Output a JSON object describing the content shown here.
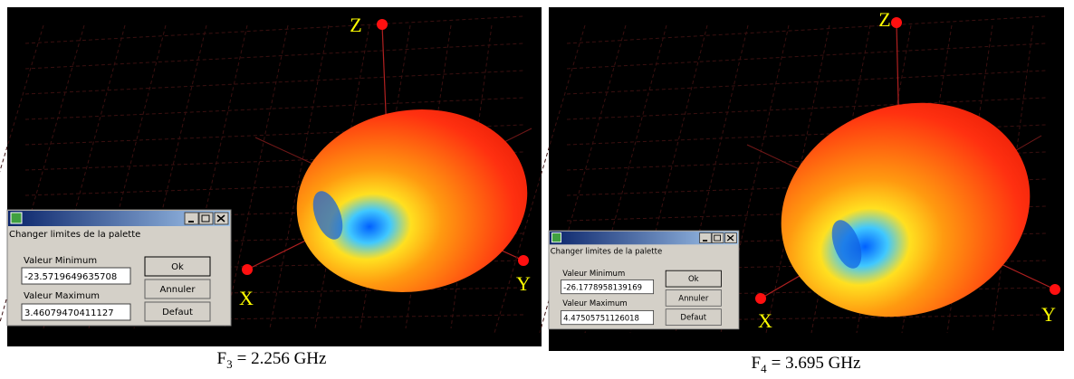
{
  "panels": [
    {
      "axis_labels": {
        "x": "X",
        "y": "Y",
        "z": "Z"
      },
      "dialog": {
        "title": "Changer limites de la palette",
        "min_label": "Valeur Minimum",
        "min_value": "-23.5719649635708",
        "max_label": "Valeur Maximum",
        "max_value": "3.46079470411127",
        "buttons": [
          "Ok",
          "Annuler",
          "Defaut"
        ]
      },
      "caption": {
        "symbol": "F",
        "subscript": "3",
        "text": "= 2.256 GHz"
      }
    },
    {
      "axis_labels": {
        "x": "X",
        "y": "Y",
        "z": "Z"
      },
      "dialog": {
        "title": "Changer limites de la palette",
        "min_label": "Valeur Minimum",
        "min_value": "-26.1778958139169",
        "max_label": "Valeur Maximum",
        "max_value": "4.47505751126018",
        "buttons": [
          "Ok",
          "Annuler",
          "Defaut"
        ]
      },
      "caption": {
        "symbol": "F",
        "subscript": "4",
        "text": "= 3.695 GHz"
      }
    }
  ]
}
